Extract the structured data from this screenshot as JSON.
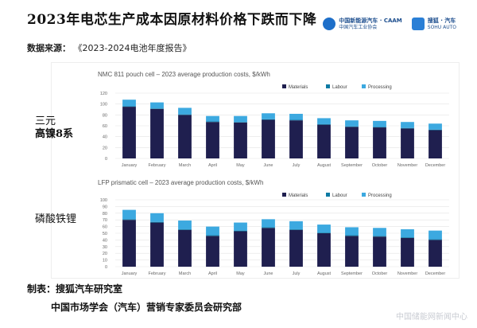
{
  "header": {
    "title": "2023年电芯生产成本因原材料价格下跌而下降",
    "source_label": "数据来源：",
    "source_value": "《2023-2024电池年度报告》"
  },
  "logos": [
    {
      "name": "中国新能源汽车 · CAAM",
      "sub": "中国汽车工业协会"
    },
    {
      "name": "搜狐 · 汽车",
      "sub": "SOHU AUTO"
    }
  ],
  "side_labels": {
    "top": "三元\n高镍8系",
    "bottom": "磷酸铁锂"
  },
  "footer": {
    "label": "制表：",
    "maker": "搜狐汽车研究室",
    "org": "中国市场学会（汽车）营销专家委员会研究部"
  },
  "colors": {
    "materials": "#1f1f4f",
    "labour": "#0e7aa3",
    "processing": "#3ca9e0"
  },
  "chart_data": [
    {
      "type": "bar",
      "stacked": true,
      "title": "NMC 811 pouch cell – 2023 average production costs, $/kWh",
      "categories": [
        "January",
        "February",
        "March",
        "April",
        "May",
        "June",
        "July",
        "August",
        "September",
        "October",
        "November",
        "December"
      ],
      "series": [
        {
          "name": "Materials",
          "values": [
            95,
            91,
            80,
            67,
            66,
            71,
            70,
            62,
            58,
            57,
            55,
            52
          ]
        },
        {
          "name": "Labour",
          "values": [
            1,
            1,
            1,
            1,
            1,
            1,
            1,
            1,
            1,
            1,
            1,
            1
          ]
        },
        {
          "name": "Processing",
          "values": [
            12,
            11,
            12,
            10,
            11,
            11,
            11,
            11,
            11,
            11,
            11,
            11
          ]
        }
      ],
      "ylim": [
        0,
        120
      ],
      "yticks": [
        0,
        20,
        40,
        60,
        80,
        100,
        120
      ],
      "legend_position": "top-right"
    },
    {
      "type": "bar",
      "stacked": true,
      "title": "LFP prismatic cell – 2023 average production costs, $/kWh",
      "categories": [
        "January",
        "February",
        "March",
        "April",
        "May",
        "June",
        "July",
        "August",
        "September",
        "October",
        "November",
        "December"
      ],
      "series": [
        {
          "name": "Materials",
          "values": [
            70,
            66,
            55,
            46,
            53,
            58,
            55,
            50,
            46,
            45,
            43,
            40
          ]
        },
        {
          "name": "Labour",
          "values": [
            1,
            1,
            1,
            1,
            1,
            1,
            1,
            1,
            1,
            1,
            1,
            1
          ]
        },
        {
          "name": "Processing",
          "values": [
            14,
            13,
            13,
            13,
            12,
            12,
            12,
            12,
            12,
            12,
            12,
            13
          ]
        }
      ],
      "ylim": [
        0,
        100
      ],
      "yticks": [
        0,
        10,
        20,
        30,
        40,
        50,
        60,
        70,
        80,
        90,
        100
      ],
      "legend_position": "top-right"
    }
  ],
  "watermark": "中国储能网新闻中心"
}
